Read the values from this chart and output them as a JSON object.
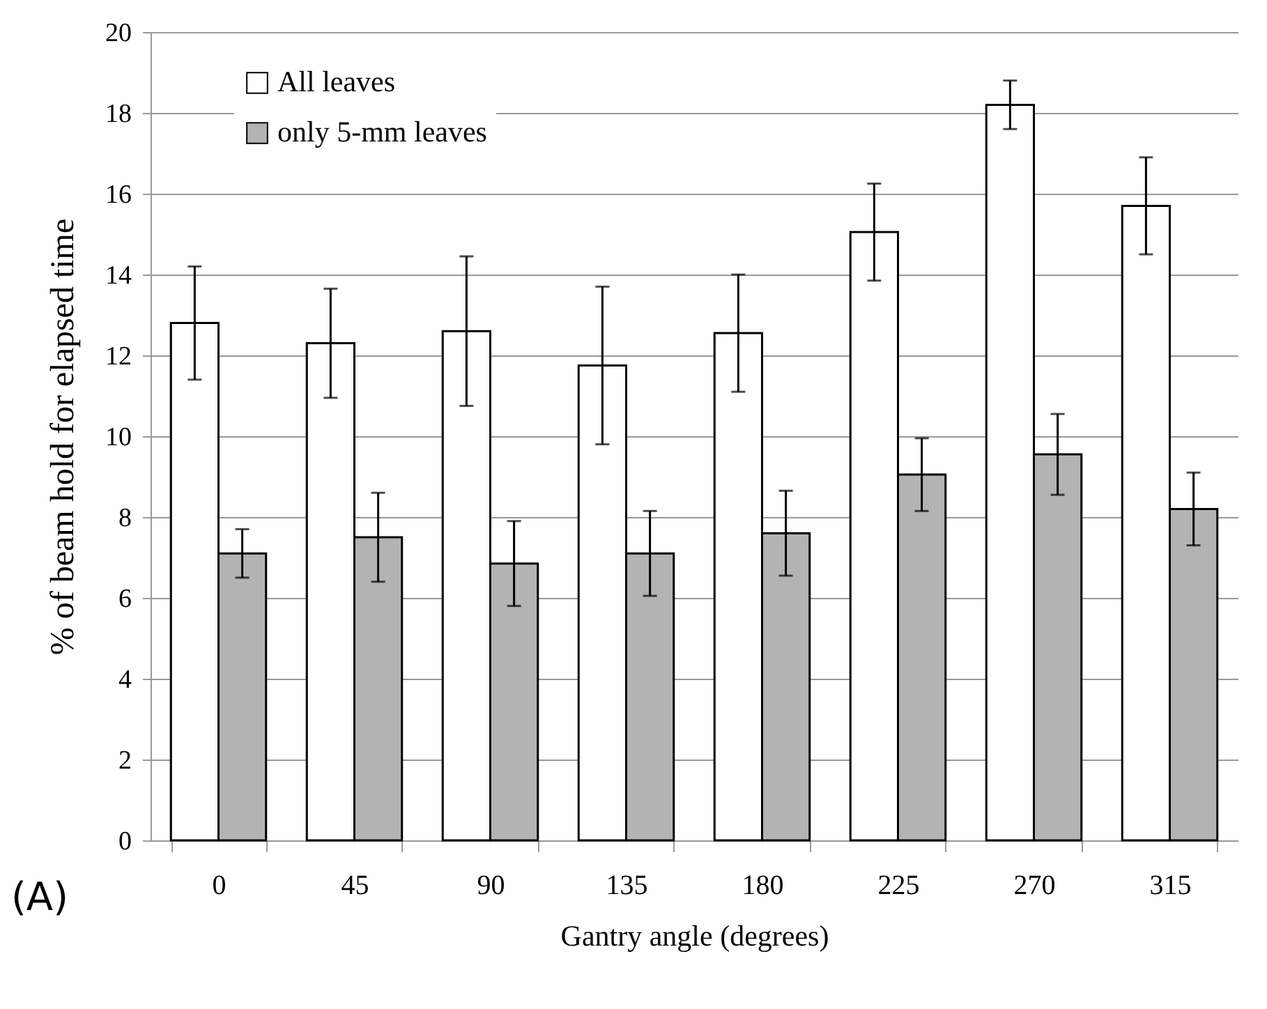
{
  "chart_data": {
    "type": "bar",
    "xlabel": "Gantry angle (degrees)",
    "ylabel": "% of beam hold for elapsed time",
    "categories": [
      "0",
      "45",
      "90",
      "135",
      "180",
      "225",
      "270",
      "315"
    ],
    "series": [
      {
        "name": "All leaves",
        "color": "#ffffff",
        "values": [
          12.8,
          12.3,
          12.6,
          11.75,
          12.55,
          15.05,
          18.2,
          15.7
        ],
        "errors": [
          1.4,
          1.35,
          1.85,
          1.95,
          1.45,
          1.2,
          0.6,
          1.2
        ]
      },
      {
        "name": "only 5-mm leaves",
        "color": "#b3b3b3",
        "values": [
          7.1,
          7.5,
          6.85,
          7.1,
          7.6,
          9.05,
          9.55,
          8.2
        ],
        "errors": [
          0.6,
          1.1,
          1.05,
          1.05,
          1.05,
          0.9,
          1.0,
          0.9
        ]
      }
    ],
    "ylim": [
      0,
      20
    ],
    "yticks": [
      0,
      2,
      4,
      6,
      8,
      10,
      12,
      14,
      16,
      18,
      20
    ],
    "grid": "y",
    "legend": "top left",
    "annotations": [
      "(A)"
    ]
  }
}
